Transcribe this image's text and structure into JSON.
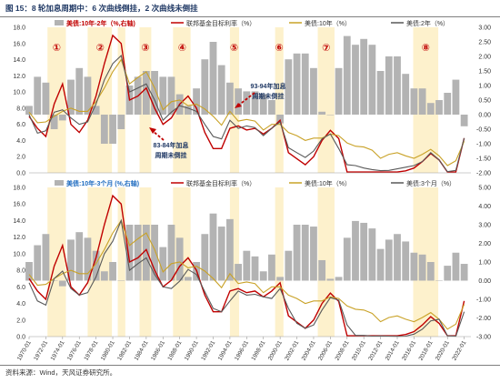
{
  "title": "图 15：8 轮加息周期中：6 次曲线倒挂，2 次曲线未倒挂",
  "source": "资料来源：Wind，天风证券研究所。",
  "colors": {
    "bar": "#b3b3b3",
    "fed": "#c00000",
    "y10": "#c9a227",
    "y2": "#595959",
    "band": "#fdf1cc",
    "cycle": "#c00000",
    "legend1": "#c00000",
    "legend2": "#1f6cc0"
  },
  "cycles": [
    "①",
    "②",
    "③",
    "④",
    "⑤",
    "⑥",
    "⑦",
    "⑧"
  ],
  "annotations": [
    "93-94年加息\n周期未倒挂",
    "83-84年加息\n周期未倒挂"
  ],
  "chart_data": [
    {
      "type": "line",
      "legend": [
        "美债:10年-2年（%,右轴)",
        "联邦基金目标利率（%）",
        "美债:10年（%）",
        "美债:2年（%）"
      ],
      "y_ticks_left": [
        "0.0",
        "2.0",
        "4.0",
        "6.0",
        "8.0",
        "10.0",
        "12.0",
        "14.0",
        "16.0",
        "18.0"
      ],
      "y_ticks_right": [
        "-2.00",
        "-1.50",
        "-1.00",
        "-0.50",
        "0.00",
        "0.50",
        "1.00",
        "1.50",
        "2.00",
        "2.50",
        "3.00"
      ],
      "ylim": [
        0,
        18
      ],
      "y2lim": [
        -2,
        3
      ],
      "x": [
        1970,
        1971,
        1972,
        1973,
        1974,
        1975,
        1976,
        1977,
        1978,
        1979,
        1980,
        1981,
        1982,
        1983,
        1984,
        1985,
        1986,
        1987,
        1988,
        1989,
        1990,
        1991,
        1992,
        1993,
        1994,
        1995,
        1996,
        1997,
        1998,
        1999,
        2000,
        2001,
        2002,
        2003,
        2004,
        2005,
        2006,
        2007,
        2008,
        2009,
        2010,
        2011,
        2012,
        2013,
        2014,
        2015,
        2016,
        2017,
        2018,
        2019,
        2020,
        2021,
        2022
      ],
      "series": [
        {
          "name": "联邦基金目标利率（%）",
          "values": [
            7.0,
            5.5,
            4.5,
            8.5,
            11.0,
            6.0,
            5.0,
            6.5,
            9.5,
            13.5,
            17.0,
            16.0,
            9.0,
            9.5,
            10.5,
            8.0,
            6.0,
            6.8,
            8.5,
            9.5,
            8.0,
            5.0,
            3.0,
            3.0,
            5.5,
            5.8,
            5.3,
            5.5,
            4.8,
            5.5,
            6.5,
            2.5,
            1.75,
            1.0,
            2.0,
            4.0,
            5.25,
            4.25,
            0.1,
            0.1,
            0.1,
            0.1,
            0.1,
            0.1,
            0.1,
            0.25,
            0.6,
            1.4,
            2.4,
            1.6,
            0.1,
            0.1,
            4.3
          ]
        },
        {
          "name": "美债:10年（%）",
          "values": [
            7.5,
            6.2,
            6.3,
            7.0,
            7.6,
            8.0,
            7.6,
            7.6,
            8.8,
            10.5,
            12.5,
            14.0,
            11.0,
            11.8,
            12.5,
            10.5,
            7.8,
            8.8,
            9.0,
            8.3,
            8.5,
            7.9,
            7.0,
            5.9,
            7.6,
            6.4,
            6.6,
            6.4,
            5.3,
            6.0,
            6.0,
            5.0,
            4.6,
            4.0,
            4.3,
            4.3,
            4.8,
            4.6,
            3.7,
            3.3,
            3.2,
            2.8,
            1.8,
            2.3,
            2.5,
            2.1,
            1.8,
            2.3,
            2.9,
            2.1,
            0.9,
            1.5,
            3.9
          ]
        },
        {
          "name": "美债:2年（%）",
          "values": [
            7.2,
            4.9,
            5.2,
            7.5,
            7.8,
            6.8,
            6.0,
            6.3,
            8.5,
            11.5,
            13.5,
            14.5,
            10.0,
            10.5,
            11.0,
            9.0,
            6.5,
            7.5,
            8.3,
            8.0,
            7.6,
            6.0,
            4.5,
            4.2,
            6.5,
            5.5,
            5.8,
            5.6,
            4.6,
            5.5,
            6.3,
            3.1,
            2.5,
            1.9,
            2.7,
            4.2,
            4.8,
            3.0,
            1.0,
            0.9,
            0.6,
            0.4,
            0.27,
            0.3,
            0.5,
            0.7,
            0.9,
            1.4,
            2.5,
            1.6,
            0.15,
            0.3,
            4.3
          ]
        },
        {
          "name": "美债:10年-2年（%,右轴)",
          "values": [
            0.3,
            1.3,
            1.1,
            -0.5,
            -0.2,
            1.2,
            1.6,
            1.3,
            0.3,
            -1.0,
            -1.0,
            -0.5,
            1.0,
            1.3,
            1.5,
            1.5,
            1.3,
            1.3,
            0.7,
            0.3,
            0.9,
            1.9,
            2.5,
            1.7,
            1.1,
            0.9,
            0.8,
            0.8,
            0.7,
            0.5,
            -0.3,
            1.9,
            2.1,
            2.1,
            1.6,
            0.1,
            0.0,
            1.6,
            2.7,
            2.4,
            2.6,
            2.4,
            1.5,
            2.0,
            2.0,
            1.4,
            0.9,
            0.9,
            0.4,
            0.5,
            0.75,
            1.2,
            -0.4
          ]
        }
      ]
    },
    {
      "type": "line",
      "legend": [
        "美债:10年-3个月 (%,右轴)",
        "联邦基金目标利率（%）",
        "美债:10年（%）",
        "美债:3个月（%）"
      ],
      "y_ticks_left": [
        "0.0",
        "2.0",
        "4.0",
        "6.0",
        "8.0",
        "10.0",
        "12.0",
        "14.0",
        "16.0",
        "18.0"
      ],
      "y_ticks_right": [
        "-3.00",
        "-2.00",
        "-1.00",
        "0.00",
        "1.00",
        "2.00",
        "3.00",
        "4.00",
        "5.00"
      ],
      "ylim": [
        0,
        18
      ],
      "y2lim": [
        -3,
        5
      ],
      "x_tick_labels": [
        "1970-01",
        "1972-01",
        "1974-01",
        "1976-01",
        "1978-01",
        "1980-01",
        "1982-01",
        "1984-01",
        "1986-01",
        "1988-01",
        "1990-01",
        "1992-01",
        "1994-01",
        "1996-01",
        "1998-01",
        "2000-01",
        "2002-01",
        "2004-01",
        "2006-01",
        "2008-01",
        "2010-01",
        "2012-01",
        "2014-01",
        "2016-01",
        "2018-01",
        "2020-01",
        "2022-01"
      ],
      "x": [
        1970,
        1971,
        1972,
        1973,
        1974,
        1975,
        1976,
        1977,
        1978,
        1979,
        1980,
        1981,
        1982,
        1983,
        1984,
        1985,
        1986,
        1987,
        1988,
        1989,
        1990,
        1991,
        1992,
        1993,
        1994,
        1995,
        1996,
        1997,
        1998,
        1999,
        2000,
        2001,
        2002,
        2003,
        2004,
        2005,
        2006,
        2007,
        2008,
        2009,
        2010,
        2011,
        2012,
        2013,
        2014,
        2015,
        2016,
        2017,
        2018,
        2019,
        2020,
        2021,
        2022
      ],
      "series": [
        {
          "name": "联邦基金目标利率（%）",
          "values": [
            7.0,
            5.5,
            4.5,
            8.5,
            11.0,
            6.0,
            5.0,
            6.5,
            9.5,
            13.5,
            17.0,
            16.0,
            9.0,
            9.5,
            10.5,
            8.0,
            6.0,
            6.8,
            8.5,
            9.5,
            8.0,
            5.0,
            3.0,
            3.0,
            5.5,
            5.8,
            5.3,
            5.5,
            4.8,
            5.5,
            6.5,
            2.5,
            1.75,
            1.0,
            2.0,
            4.0,
            5.25,
            4.25,
            0.1,
            0.1,
            0.1,
            0.1,
            0.1,
            0.1,
            0.1,
            0.25,
            0.6,
            1.4,
            2.4,
            1.6,
            0.1,
            0.1,
            4.3
          ]
        },
        {
          "name": "美债:10年（%）",
          "values": [
            7.5,
            6.2,
            6.3,
            7.0,
            7.6,
            8.0,
            7.6,
            7.6,
            8.8,
            10.5,
            12.5,
            14.0,
            11.0,
            11.8,
            12.5,
            10.5,
            7.8,
            8.8,
            9.0,
            8.3,
            8.5,
            7.9,
            7.0,
            5.9,
            7.6,
            6.4,
            6.6,
            6.4,
            5.3,
            6.0,
            6.0,
            5.0,
            4.6,
            4.0,
            4.3,
            4.3,
            4.8,
            4.6,
            3.7,
            3.3,
            3.2,
            2.8,
            1.8,
            2.3,
            2.5,
            2.1,
            1.8,
            2.3,
            2.9,
            2.1,
            0.9,
            1.5,
            3.9
          ]
        },
        {
          "name": "美债:3个月（%）",
          "values": [
            6.5,
            4.3,
            3.8,
            7.0,
            7.9,
            5.8,
            5.0,
            5.3,
            7.2,
            10.0,
            11.5,
            14.0,
            8.0,
            8.8,
            9.5,
            7.5,
            6.0,
            5.8,
            6.7,
            8.1,
            7.5,
            5.4,
            3.4,
            3.0,
            4.3,
            5.5,
            5.0,
            5.1,
            4.8,
            4.6,
            5.8,
            3.4,
            1.6,
            1.0,
            1.4,
            3.2,
            4.7,
            4.4,
            1.4,
            0.15,
            0.14,
            0.05,
            0.08,
            0.06,
            0.03,
            0.05,
            0.3,
            0.9,
            1.9,
            2.1,
            0.1,
            0.05,
            3.0
          ]
        },
        {
          "name": "美债:10年-3个月 (%,右轴)",
          "values": [
            1.0,
            1.9,
            2.5,
            0.0,
            -0.3,
            2.2,
            2.6,
            2.3,
            1.6,
            0.5,
            1.0,
            0.0,
            3.0,
            3.0,
            3.0,
            3.0,
            1.8,
            3.0,
            2.3,
            0.2,
            1.0,
            2.5,
            3.6,
            2.9,
            3.3,
            0.9,
            1.6,
            1.3,
            0.5,
            1.4,
            0.2,
            1.6,
            3.0,
            3.0,
            2.9,
            1.1,
            0.1,
            0.2,
            2.3,
            3.2,
            3.1,
            2.8,
            1.7,
            2.2,
            2.5,
            2.1,
            1.5,
            1.4,
            1.0,
            0.0,
            0.8,
            1.5,
            0.9
          ]
        }
      ]
    }
  ]
}
